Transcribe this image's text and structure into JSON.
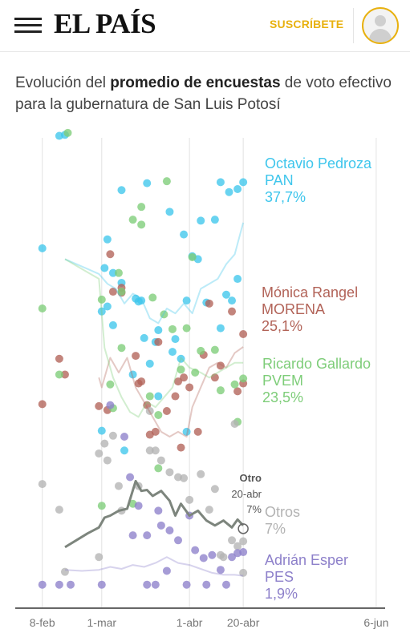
{
  "header": {
    "logo": "EL PAÍS",
    "subscribe_label": "SUSCRÍBETE"
  },
  "headline": {
    "prefix": "Evolución del ",
    "bold": "promedio de encuestas",
    "suffix": " de voto efectivo para la gubernatura de San Luis Potosí"
  },
  "chart_data": {
    "type": "scatter",
    "x_axis": {
      "type": "date",
      "range": [
        "2021-01-30",
        "2021-06-10"
      ],
      "ticks": [
        {
          "date": "2021-02-08",
          "label": "8-feb"
        },
        {
          "date": "2021-03-01",
          "label": "1-mar"
        },
        {
          "date": "2021-04-01",
          "label": "1-abr"
        },
        {
          "date": "2021-04-20",
          "label": "20-abr"
        },
        {
          "date": "2021-06-06",
          "label": "6-jun"
        }
      ]
    },
    "y_axis": {
      "range": [
        0,
        45
      ],
      "unit": "%"
    },
    "series": [
      {
        "name": "Octavio Pedroza",
        "party": "PAN",
        "value_label": "37,7%",
        "color": "#3fc6ec",
        "points": [
          [
            "2021-02-08",
            35.1
          ],
          [
            "2021-02-14",
            46.5
          ],
          [
            "2021-02-16",
            46.6
          ],
          [
            "2021-03-01",
            28.7
          ],
          [
            "2021-03-02",
            33.1
          ],
          [
            "2021-03-03",
            29.2
          ],
          [
            "2021-03-05",
            32.6
          ],
          [
            "2021-03-08",
            41.0
          ],
          [
            "2021-03-13",
            30.0
          ],
          [
            "2021-03-15",
            29.8
          ],
          [
            "2021-03-17",
            41.7
          ],
          [
            "2021-03-18",
            23.4
          ],
          [
            "2021-03-20",
            25.6
          ],
          [
            "2021-03-25",
            38.8
          ],
          [
            "2021-03-27",
            25.9
          ],
          [
            "2021-03-29",
            23.9
          ],
          [
            "2021-03-31",
            29.8
          ],
          [
            "2021-04-02",
            34.3
          ],
          [
            "2021-04-05",
            37.9
          ],
          [
            "2021-04-07",
            29.6
          ],
          [
            "2021-04-12",
            41.8
          ],
          [
            "2021-04-14",
            30.4
          ],
          [
            "2021-04-15",
            40.8
          ],
          [
            "2021-04-16",
            29.8
          ],
          [
            "2021-04-18",
            41.1
          ],
          [
            "2021-04-20",
            41.8
          ],
          [
            "2021-03-01",
            16.6
          ],
          [
            "2021-03-12",
            22.3
          ],
          [
            "2021-03-09",
            14.6
          ],
          [
            "2021-03-21",
            20.1
          ],
          [
            "2021-03-31",
            16.5
          ],
          [
            "2021-03-05",
            27.3
          ],
          [
            "2021-03-08",
            31.6
          ],
          [
            "2021-03-14",
            29.7
          ],
          [
            "2021-03-21",
            26.8
          ],
          [
            "2021-03-26",
            24.6
          ],
          [
            "2021-04-04",
            34.0
          ],
          [
            "2021-04-10",
            38.0
          ],
          [
            "2021-04-12",
            27.0
          ],
          [
            "2021-04-18",
            32.0
          ],
          [
            "2021-03-03",
            36.0
          ],
          [
            "2021-03-16",
            26.0
          ],
          [
            "2021-03-30",
            36.5
          ]
        ],
        "trend": [
          [
            "2021-02-16",
            34.0
          ],
          [
            "2021-02-20",
            33.5
          ],
          [
            "2021-02-24",
            33.0
          ],
          [
            "2021-02-28",
            32.5
          ],
          [
            "2021-03-03",
            31.5
          ],
          [
            "2021-03-06",
            31.0
          ],
          [
            "2021-03-09",
            29.5
          ],
          [
            "2021-03-12",
            30.5
          ],
          [
            "2021-03-15",
            30.0
          ],
          [
            "2021-03-18",
            28.0
          ],
          [
            "2021-03-21",
            27.5
          ],
          [
            "2021-03-24",
            29.0
          ],
          [
            "2021-03-27",
            28.5
          ],
          [
            "2021-03-30",
            29.5
          ],
          [
            "2021-04-02",
            28.5
          ],
          [
            "2021-04-05",
            31.0
          ],
          [
            "2021-04-08",
            31.5
          ],
          [
            "2021-04-11",
            32.0
          ],
          [
            "2021-04-14",
            33.5
          ],
          [
            "2021-04-17",
            34.5
          ],
          [
            "2021-04-20",
            37.7
          ]
        ]
      },
      {
        "name": "Mónica Rangel",
        "party": "MORENA",
        "value_label": "25,1%",
        "color": "#b26358",
        "points": [
          [
            "2021-02-08",
            19.3
          ],
          [
            "2021-02-14",
            23.9
          ],
          [
            "2021-02-16",
            22.3
          ],
          [
            "2021-02-28",
            19.1
          ],
          [
            "2021-03-03",
            18.7
          ],
          [
            "2021-03-04",
            34.5
          ],
          [
            "2021-03-05",
            30.7
          ],
          [
            "2021-03-08",
            31.1
          ],
          [
            "2021-03-13",
            24.2
          ],
          [
            "2021-03-14",
            21.4
          ],
          [
            "2021-03-15",
            21.6
          ],
          [
            "2021-03-17",
            19.2
          ],
          [
            "2021-03-18",
            16.2
          ],
          [
            "2021-03-20",
            16.5
          ],
          [
            "2021-03-24",
            18.6
          ],
          [
            "2021-03-27",
            20.1
          ],
          [
            "2021-03-29",
            14.9
          ],
          [
            "2021-03-30",
            22.0
          ],
          [
            "2021-04-01",
            21.0
          ],
          [
            "2021-04-04",
            16.5
          ],
          [
            "2021-04-06",
            24.3
          ],
          [
            "2021-04-08",
            29.5
          ],
          [
            "2021-04-12",
            23.2
          ],
          [
            "2021-04-16",
            28.7
          ],
          [
            "2021-04-18",
            20.6
          ],
          [
            "2021-04-20",
            26.4
          ],
          [
            "2021-04-20",
            21.4
          ],
          [
            "2021-04-10",
            22.0
          ],
          [
            "2021-03-08",
            30.6
          ],
          [
            "2021-03-21",
            25.6
          ],
          [
            "2021-03-28",
            21.6
          ]
        ],
        "trend": [
          [
            "2021-02-28",
            22.0
          ],
          [
            "2021-03-01",
            21.0
          ],
          [
            "2021-03-04",
            24.0
          ],
          [
            "2021-03-07",
            22.5
          ],
          [
            "2021-03-10",
            24.0
          ],
          [
            "2021-03-13",
            21.0
          ],
          [
            "2021-03-16",
            19.5
          ],
          [
            "2021-03-19",
            18.0
          ],
          [
            "2021-03-22",
            16.5
          ],
          [
            "2021-03-25",
            16.0
          ],
          [
            "2021-03-28",
            16.5
          ],
          [
            "2021-03-31",
            16.0
          ],
          [
            "2021-04-02",
            19.0
          ],
          [
            "2021-04-05",
            21.0
          ],
          [
            "2021-04-08",
            23.0
          ],
          [
            "2021-04-11",
            23.5
          ],
          [
            "2021-04-14",
            23.0
          ],
          [
            "2021-04-17",
            24.5
          ],
          [
            "2021-04-20",
            25.1
          ]
        ]
      },
      {
        "name": "Ricardo Gallardo",
        "party": "PVEM",
        "value_label": "23,5%",
        "color": "#7ecd79",
        "points": [
          [
            "2021-02-08",
            29.0
          ],
          [
            "2021-02-14",
            22.3
          ],
          [
            "2021-02-17",
            46.8
          ],
          [
            "2021-03-01",
            29.9
          ],
          [
            "2021-03-04",
            21.3
          ],
          [
            "2021-03-05",
            18.9
          ],
          [
            "2021-03-07",
            32.6
          ],
          [
            "2021-03-08",
            30.7
          ],
          [
            "2021-03-12",
            38.0
          ],
          [
            "2021-03-15",
            39.3
          ],
          [
            "2021-03-18",
            20.1
          ],
          [
            "2021-03-19",
            30.1
          ],
          [
            "2021-03-21",
            18.2
          ],
          [
            "2021-03-23",
            28.4
          ],
          [
            "2021-03-24",
            41.9
          ],
          [
            "2021-03-26",
            26.9
          ],
          [
            "2021-03-29",
            22.8
          ],
          [
            "2021-03-31",
            27.0
          ],
          [
            "2021-04-02",
            34.2
          ],
          [
            "2021-04-03",
            22.5
          ],
          [
            "2021-04-05",
            24.7
          ],
          [
            "2021-04-10",
            24.8
          ],
          [
            "2021-04-12",
            20.7
          ],
          [
            "2021-04-17",
            21.3
          ],
          [
            "2021-04-20",
            21.9
          ],
          [
            "2021-04-18",
            17.5
          ],
          [
            "2021-03-21",
            12.8
          ],
          [
            "2021-03-12",
            9.2
          ],
          [
            "2021-03-01",
            9.0
          ],
          [
            "2021-03-08",
            25.0
          ],
          [
            "2021-03-15",
            37.5
          ]
        ],
        "trend": [
          [
            "2021-02-16",
            34.0
          ],
          [
            "2021-02-22",
            33.0
          ],
          [
            "2021-02-28",
            32.0
          ],
          [
            "2021-03-02",
            25.0
          ],
          [
            "2021-03-05",
            22.0
          ],
          [
            "2021-03-08",
            20.0
          ],
          [
            "2021-03-11",
            18.5
          ],
          [
            "2021-03-14",
            18.0
          ],
          [
            "2021-03-17",
            19.5
          ],
          [
            "2021-03-20",
            19.0
          ],
          [
            "2021-03-23",
            20.0
          ],
          [
            "2021-03-26",
            21.0
          ],
          [
            "2021-03-29",
            24.0
          ],
          [
            "2021-04-01",
            23.0
          ],
          [
            "2021-04-05",
            22.5
          ],
          [
            "2021-04-08",
            22.0
          ],
          [
            "2021-04-11",
            22.5
          ],
          [
            "2021-04-14",
            23.0
          ],
          [
            "2021-04-17",
            23.5
          ],
          [
            "2021-04-20",
            23.5
          ]
        ]
      },
      {
        "name": "Otros",
        "party": "",
        "value_label": "7%",
        "color": "#b3b3b3",
        "points": [
          [
            "2021-02-08",
            11.2
          ],
          [
            "2021-02-14",
            8.6
          ],
          [
            "2021-02-16",
            2.3
          ],
          [
            "2021-02-28",
            14.3
          ],
          [
            "2021-03-02",
            15.3
          ],
          [
            "2021-03-03",
            13.6
          ],
          [
            "2021-03-05",
            16.1
          ],
          [
            "2021-03-07",
            11.0
          ],
          [
            "2021-03-08",
            8.5
          ],
          [
            "2021-03-14",
            11.0
          ],
          [
            "2021-03-18",
            14.6
          ],
          [
            "2021-03-20",
            14.6
          ],
          [
            "2021-03-22",
            13.6
          ],
          [
            "2021-03-25",
            12.4
          ],
          [
            "2021-03-28",
            11.9
          ],
          [
            "2021-03-30",
            11.8
          ],
          [
            "2021-04-01",
            9.6
          ],
          [
            "2021-04-05",
            12.2
          ],
          [
            "2021-04-08",
            8.6
          ],
          [
            "2021-04-10",
            10.7
          ],
          [
            "2021-04-12",
            4.0
          ],
          [
            "2021-04-13",
            3.8
          ],
          [
            "2021-04-16",
            5.5
          ],
          [
            "2021-04-18",
            4.9
          ],
          [
            "2021-04-20",
            5.4
          ],
          [
            "2021-04-20",
            2.2
          ],
          [
            "2021-04-17",
            17.3
          ],
          [
            "2021-03-18",
            18.6
          ],
          [
            "2021-02-28",
            3.8
          ]
        ],
        "trend": [
          [
            "2021-02-16",
            4.8
          ],
          [
            "2021-02-20",
            5.5
          ],
          [
            "2021-02-24",
            6.2
          ],
          [
            "2021-02-28",
            6.8
          ],
          [
            "2021-03-02",
            7.8
          ],
          [
            "2021-03-04",
            8.0
          ],
          [
            "2021-03-07",
            8.5
          ],
          [
            "2021-03-10",
            8.7
          ],
          [
            "2021-03-13",
            11.5
          ],
          [
            "2021-03-15",
            10.5
          ],
          [
            "2021-03-17",
            10.6
          ],
          [
            "2021-03-19",
            10.0
          ],
          [
            "2021-03-22",
            10.5
          ],
          [
            "2021-03-25",
            9.5
          ],
          [
            "2021-03-27",
            8.0
          ],
          [
            "2021-03-29",
            9.2
          ],
          [
            "2021-04-01",
            8.0
          ],
          [
            "2021-04-04",
            8.5
          ],
          [
            "2021-04-07",
            7.5
          ],
          [
            "2021-04-10",
            7.0
          ],
          [
            "2021-04-13",
            7.5
          ],
          [
            "2021-04-16",
            6.8
          ],
          [
            "2021-04-18",
            7.6
          ],
          [
            "2021-04-20",
            7.0
          ]
        ]
      },
      {
        "name": "Adrián Esper",
        "party": "PES",
        "value_label": "1,9%",
        "color": "#8d80ca",
        "points": [
          [
            "2021-02-08",
            1.0
          ],
          [
            "2021-02-14",
            1.0
          ],
          [
            "2021-02-18",
            1.0
          ],
          [
            "2021-03-01",
            1.0
          ],
          [
            "2021-03-04",
            19.2
          ],
          [
            "2021-03-09",
            16.0
          ],
          [
            "2021-03-11",
            11.9
          ],
          [
            "2021-03-14",
            9.0
          ],
          [
            "2021-03-17",
            6.0
          ],
          [
            "2021-03-20",
            1.0
          ],
          [
            "2021-03-22",
            7.0
          ],
          [
            "2021-03-25",
            6.5
          ],
          [
            "2021-03-28",
            5.5
          ],
          [
            "2021-04-01",
            8.0
          ],
          [
            "2021-04-03",
            4.5
          ],
          [
            "2021-04-06",
            3.7
          ],
          [
            "2021-04-09",
            4.0
          ],
          [
            "2021-04-12",
            2.5
          ],
          [
            "2021-04-16",
            3.8
          ],
          [
            "2021-04-18",
            4.2
          ],
          [
            "2021-04-20",
            4.3
          ],
          [
            "2021-03-12",
            6.0
          ],
          [
            "2021-03-21",
            8.5
          ],
          [
            "2021-03-24",
            2.4
          ],
          [
            "2021-04-07",
            1.0
          ],
          [
            "2021-04-14",
            1.0
          ],
          [
            "2021-03-31",
            1.0
          ],
          [
            "2021-03-17",
            1.0
          ]
        ],
        "trend": [
          [
            "2021-02-16",
            2.5
          ],
          [
            "2021-02-22",
            2.4
          ],
          [
            "2021-02-28",
            2.5
          ],
          [
            "2021-03-04",
            2.8
          ],
          [
            "2021-03-08",
            2.6
          ],
          [
            "2021-03-12",
            3.0
          ],
          [
            "2021-03-16",
            2.8
          ],
          [
            "2021-03-20",
            3.2
          ],
          [
            "2021-03-24",
            3.8
          ],
          [
            "2021-03-28",
            3.2
          ],
          [
            "2021-04-01",
            3.0
          ],
          [
            "2021-04-05",
            2.6
          ],
          [
            "2021-04-09",
            2.2
          ],
          [
            "2021-04-13",
            2.0
          ],
          [
            "2021-04-17",
            2.0
          ],
          [
            "2021-04-20",
            1.9
          ]
        ]
      }
    ],
    "annotation": {
      "series": "Otros",
      "date": "2021-04-20",
      "lines": [
        "Otro",
        "20-abr",
        "7%"
      ]
    }
  }
}
